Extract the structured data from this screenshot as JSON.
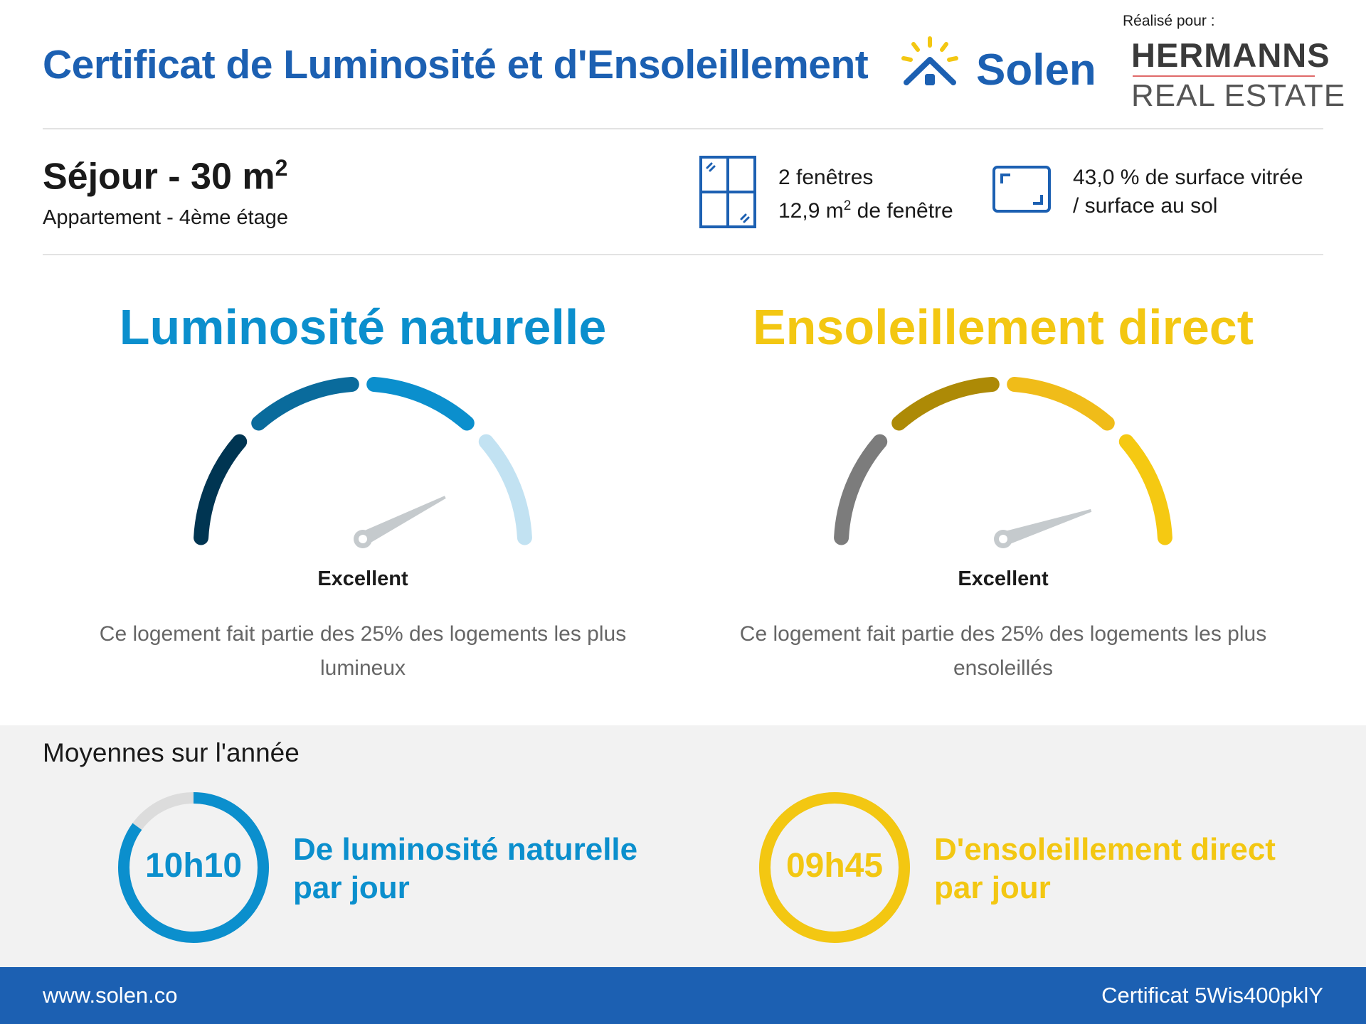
{
  "header": {
    "title": "Certificat de Luminosité et d'Ensoleillement",
    "brand": "Solen",
    "made_for_label": "Réalisé pour :",
    "client_line1": "HERMANNS",
    "client_line2": "REAL ESTATE"
  },
  "room": {
    "name": "Séjour - 30 m",
    "area_exp": "2",
    "subtitle": "Appartement - 4ème étage"
  },
  "windows": {
    "count": "2 fenêtres",
    "area_prefix": "12,9 m",
    "area_exp": "2",
    "area_suffix": " de fenêtre",
    "icon": "window-icon"
  },
  "glazing": {
    "line1": "43,0 % de surface vitrée",
    "line2": "/ surface au sol",
    "icon": "floor-area-icon"
  },
  "gauges": {
    "light": {
      "title": "Luminosité naturelle",
      "rating": "Excellent",
      "description": "Ce logement fait partie des 25% des logements les plus lumineux",
      "level": 0.85,
      "color": "#0b8fcd"
    },
    "sun": {
      "title": "Ensoleillement direct",
      "rating": "Excellent",
      "description": "Ce logement fait partie des 25% des logements les plus ensoleillés",
      "level": 0.9,
      "color": "#f3c712"
    }
  },
  "averages": {
    "title": "Moyennes sur l'année",
    "light": {
      "value": "10h10",
      "line1": "De luminosité naturelle",
      "line2": "par jour",
      "fraction": 0.85,
      "color": "#0b8fcd"
    },
    "sun": {
      "value": "09h45",
      "line1": "D'ensoleillement direct",
      "line2": "par jour",
      "fraction": 1.0,
      "color": "#f3c712"
    }
  },
  "footer": {
    "website": "www.solen.co",
    "certificate": "Certificat 5Wis400pklY"
  }
}
